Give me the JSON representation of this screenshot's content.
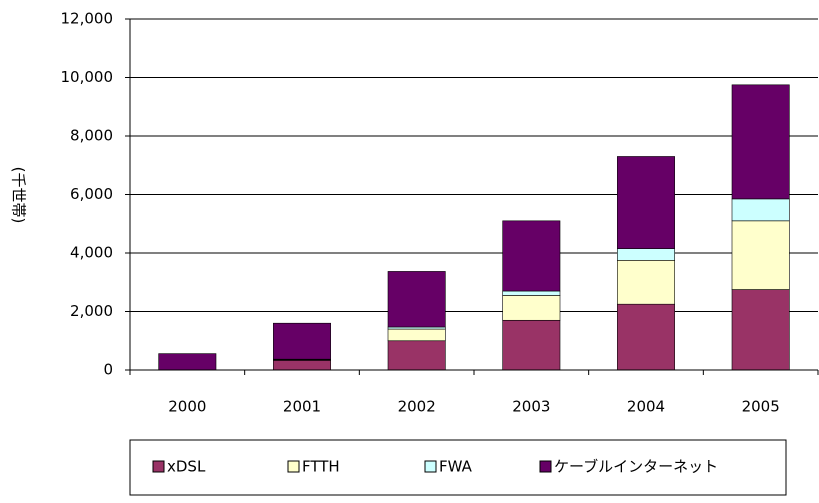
{
  "chart_data": {
    "type": "stacked_bar",
    "y_label": "(千世帯)",
    "categories": [
      "2000",
      "2001",
      "2002",
      "2003",
      "2004",
      "2005"
    ],
    "series": [
      {
        "name": "xDSL",
        "color": "#993366",
        "values": [
          0,
          330,
          1000,
          1700,
          2250,
          2750
        ]
      },
      {
        "name": "FTTH",
        "color": "#ffffcc",
        "values": [
          0,
          20,
          400,
          850,
          1500,
          2350
        ]
      },
      {
        "name": "FWA",
        "color": "#ccffff",
        "values": [
          0,
          20,
          70,
          150,
          400,
          750
        ]
      },
      {
        "name": "ケーブルインターネット",
        "color": "#660066",
        "values": [
          560,
          1230,
          1900,
          2400,
          3150,
          3900
        ]
      }
    ],
    "ylim": [
      0,
      12000
    ],
    "yticks": [
      0,
      {
        "value": 2000,
        "label": "2,000"
      },
      {
        "value": 4000,
        "label": "4,000"
      },
      {
        "value": 6000,
        "label": "6,000"
      },
      {
        "value": 8000,
        "label": "8,000"
      },
      {
        "value": 10000,
        "label": "10,000"
      },
      {
        "value": 12000,
        "label": "12,000"
      }
    ],
    "grid": true,
    "legend": "bottom"
  }
}
